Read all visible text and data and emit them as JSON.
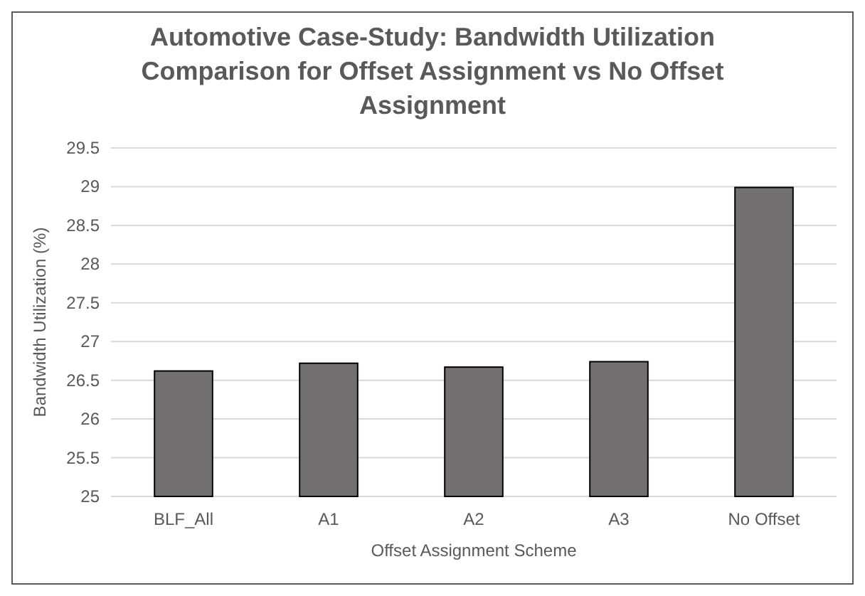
{
  "chart_data": {
    "type": "bar",
    "title": "Automotive Case-Study: Bandwidth Utilization Comparison for Offset Assignment vs No Offset Assignment",
    "xlabel": "Offset Assignment Scheme",
    "ylabel": "Bandwidth Utilization (%)",
    "categories": [
      "BLF_All",
      "A1",
      "A2",
      "A3",
      "No Offset"
    ],
    "values": [
      26.62,
      26.72,
      26.67,
      26.74,
      28.99
    ],
    "color": "#757070",
    "ylim": [
      25,
      29.5
    ],
    "yticks": [
      25,
      25.5,
      26,
      26.5,
      27,
      27.5,
      28,
      28.5,
      29,
      29.5
    ],
    "grid": "y"
  }
}
